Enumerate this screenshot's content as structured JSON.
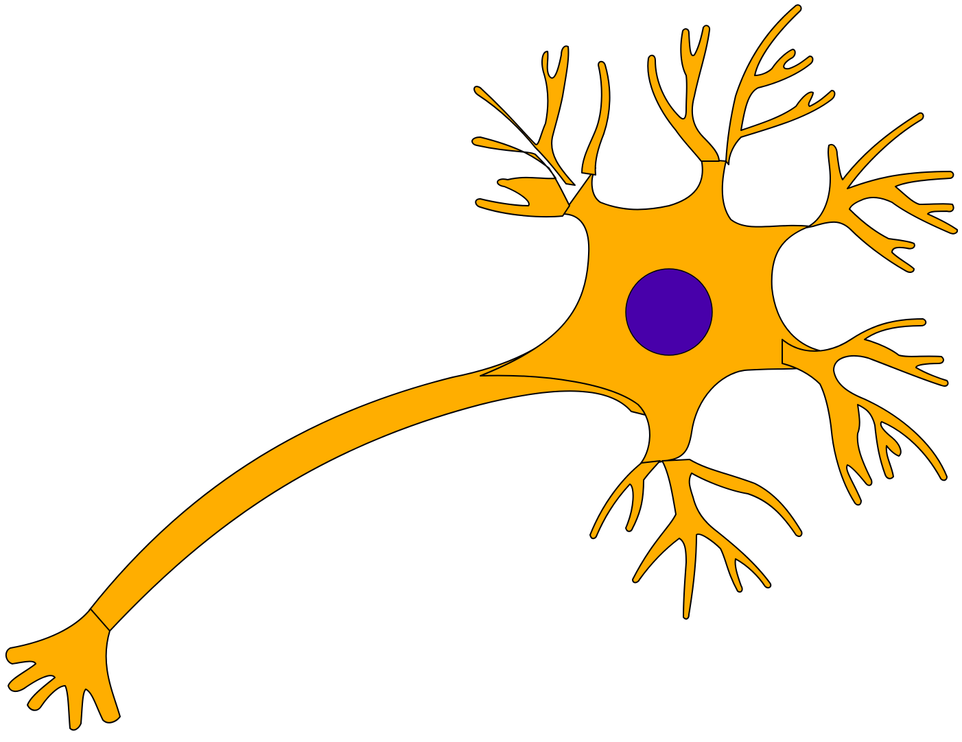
{
  "colors": {
    "background": "#ffffff",
    "cell_fill": "#FFAE00",
    "outline": "#000000",
    "nucleus_fill": "#4800AA"
  },
  "labels": []
}
